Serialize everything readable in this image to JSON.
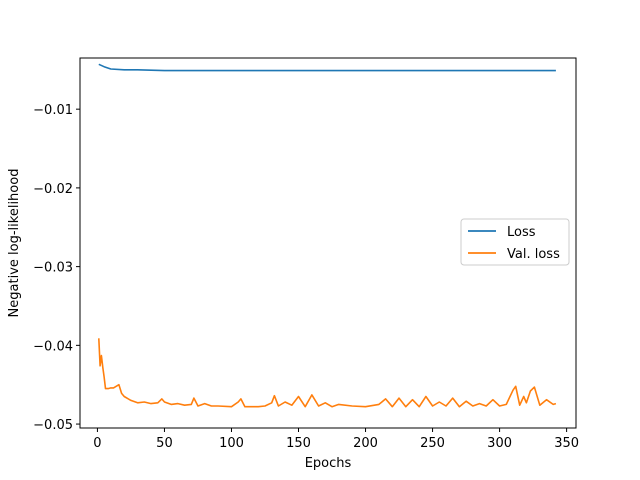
{
  "chart_data": {
    "type": "line",
    "xlabel": "Epochs",
    "ylabel": "Negative log-likelihood",
    "xlim": [
      -13,
      357
    ],
    "ylim": [
      -0.0505,
      -0.0035
    ],
    "x_ticks": [
      0,
      50,
      100,
      150,
      200,
      250,
      300,
      350
    ],
    "y_ticks": [
      -0.05,
      -0.04,
      -0.03,
      -0.02,
      -0.01
    ],
    "x_tick_labels": [
      "0",
      "50",
      "100",
      "150",
      "200",
      "250",
      "300",
      "350"
    ],
    "y_tick_labels": [
      "−0.05",
      "−0.04",
      "−0.03",
      "−0.02",
      "−0.01"
    ],
    "legend_position": "center-right",
    "grid": false,
    "x_range": [
      1,
      342
    ],
    "series": [
      {
        "name": "Loss",
        "color": "#1f77b4",
        "x": [
          1,
          5,
          10,
          20,
          30,
          50,
          75,
          100,
          125,
          150,
          175,
          200,
          225,
          250,
          275,
          300,
          325,
          342
        ],
        "values": [
          -0.0043,
          -0.0046,
          -0.0049,
          -0.005,
          -0.005,
          -0.0051,
          -0.0051,
          -0.0051,
          -0.0051,
          -0.0051,
          -0.0051,
          -0.0051,
          -0.0051,
          -0.0051,
          -0.0051,
          -0.0051,
          -0.0051,
          -0.0051
        ]
      },
      {
        "name": "Val. loss",
        "color": "#ff7f0e",
        "x": [
          1,
          2,
          3,
          4,
          5,
          6,
          8,
          10,
          12,
          14,
          16,
          18,
          20,
          25,
          30,
          35,
          40,
          45,
          48,
          50,
          55,
          60,
          65,
          70,
          72,
          75,
          80,
          85,
          90,
          100,
          105,
          107,
          110,
          120,
          125,
          130,
          132,
          135,
          140,
          145,
          150,
          155,
          160,
          165,
          170,
          175,
          180,
          190,
          200,
          210,
          215,
          220,
          225,
          230,
          235,
          240,
          245,
          250,
          255,
          260,
          265,
          270,
          275,
          280,
          285,
          290,
          295,
          300,
          305,
          310,
          312,
          315,
          318,
          320,
          323,
          326,
          330,
          335,
          340,
          342
        ],
        "values": [
          -0.0391,
          -0.0426,
          -0.0413,
          -0.0428,
          -0.044,
          -0.0455,
          -0.0455,
          -0.0454,
          -0.0454,
          -0.0452,
          -0.045,
          -0.0461,
          -0.0465,
          -0.047,
          -0.0473,
          -0.0472,
          -0.0474,
          -0.0473,
          -0.0468,
          -0.0472,
          -0.0475,
          -0.0474,
          -0.0476,
          -0.0475,
          -0.0467,
          -0.0477,
          -0.0474,
          -0.0477,
          -0.0477,
          -0.0478,
          -0.0472,
          -0.0468,
          -0.0478,
          -0.0478,
          -0.0477,
          -0.0473,
          -0.0464,
          -0.0477,
          -0.0472,
          -0.0476,
          -0.0465,
          -0.0478,
          -0.0463,
          -0.0477,
          -0.0473,
          -0.0478,
          -0.0475,
          -0.0477,
          -0.0478,
          -0.0475,
          -0.0468,
          -0.0478,
          -0.0467,
          -0.0478,
          -0.0469,
          -0.0478,
          -0.0465,
          -0.0477,
          -0.0472,
          -0.0477,
          -0.0467,
          -0.0478,
          -0.0471,
          -0.0477,
          -0.0474,
          -0.0477,
          -0.0469,
          -0.0477,
          -0.0475,
          -0.0457,
          -0.0452,
          -0.0476,
          -0.0465,
          -0.0473,
          -0.0458,
          -0.0453,
          -0.0476,
          -0.0469,
          -0.0475,
          -0.0474
        ]
      }
    ]
  }
}
